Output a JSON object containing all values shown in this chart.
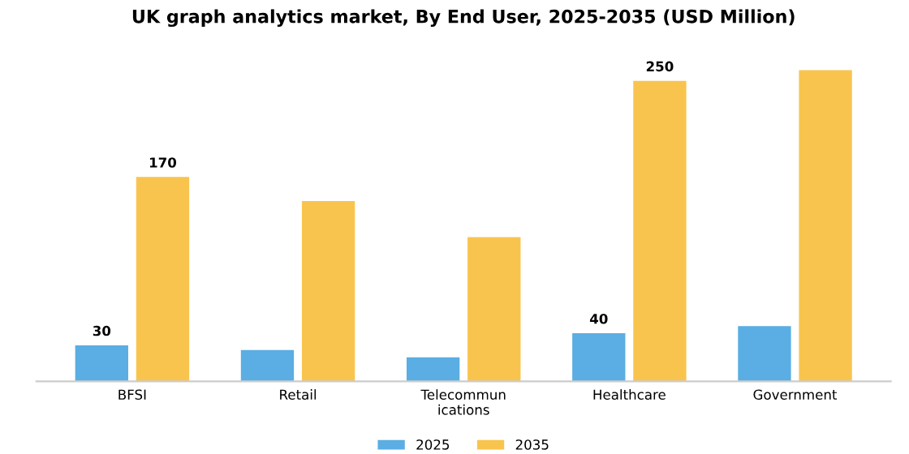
{
  "chart_data": {
    "type": "bar",
    "title": "UK graph analytics market, By End User, 2025-2035 (USD Million)",
    "categories": [
      "BFSI",
      "Retail",
      "Telecommun\nications",
      "Healthcare",
      "Government"
    ],
    "series": [
      {
        "name": "2025",
        "color": "#5aaee3",
        "values": [
          30,
          26,
          20,
          40,
          46
        ],
        "value_labels": [
          "30",
          null,
          null,
          "40",
          null
        ]
      },
      {
        "name": "2035",
        "color": "#f9c44e",
        "values": [
          170,
          150,
          120,
          250,
          259
        ],
        "value_labels": [
          "170",
          null,
          null,
          "250",
          null
        ]
      }
    ],
    "legend": "bottom",
    "grid": false
  }
}
